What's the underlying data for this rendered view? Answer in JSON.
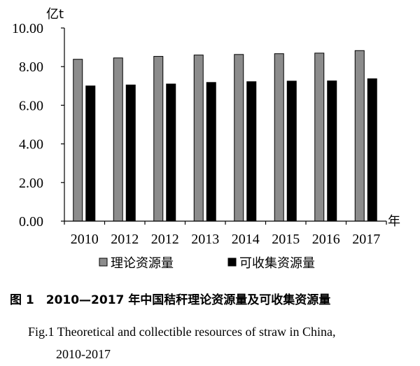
{
  "chart_data": {
    "type": "bar",
    "categories": [
      "2010",
      "2012",
      "2012",
      "2013",
      "2014",
      "2015",
      "2016",
      "2017"
    ],
    "series": [
      {
        "name": "理论资源量",
        "values": [
          8.38,
          8.45,
          8.53,
          8.6,
          8.63,
          8.67,
          8.7,
          8.83
        ],
        "color": "#8c8c8c"
      },
      {
        "name": "可收集资源量",
        "values": [
          7.0,
          7.05,
          7.1,
          7.18,
          7.22,
          7.25,
          7.26,
          7.37
        ],
        "color": "#000000"
      }
    ],
    "yticks": [
      "0.00",
      "2.00",
      "4.00",
      "6.00",
      "8.00",
      "10.00"
    ],
    "ylim": [
      0,
      10
    ],
    "yunit": "亿t",
    "xunit": "年",
    "grid": false,
    "legend_position": "bottom"
  },
  "caption": {
    "cn": "图 1　2010—2017 年中国秸秆理论资源量及可收集资源量",
    "en_line1": "Fig.1  Theoretical and collectible resources of straw in China,",
    "en_line2": "2010-2017"
  }
}
